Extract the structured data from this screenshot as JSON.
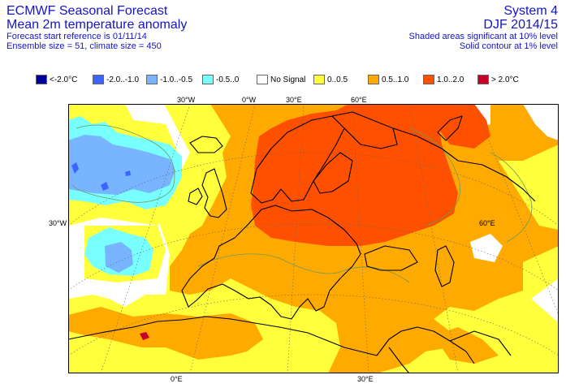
{
  "header": {
    "title_left": "ECMWF Seasonal Forecast",
    "subtitle_left": "Mean 2m temperature anomaly",
    "forecast_start": "Forecast start reference is 01/11/14",
    "ensemble": "Ensemble size = 51, climate size = 450",
    "system": "System 4",
    "season": "DJF 2014/15",
    "shaded_note": "Shaded areas significant at 10% level",
    "contour_note": "Solid contour at 1% level"
  },
  "legend": [
    {
      "label": "<-2.0°C",
      "color": "#00009c"
    },
    {
      "label": "-2.0..-1.0",
      "color": "#3c64ff"
    },
    {
      "label": "-1.0..-0.5",
      "color": "#78b4ff"
    },
    {
      "label": "-0.5..0",
      "color": "#78ffff"
    },
    {
      "label": "No Signal",
      "color": "#ffffff"
    },
    {
      "label": "0..0.5",
      "color": "#ffff3c"
    },
    {
      "label": "0.5..1.0",
      "color": "#ffaa00"
    },
    {
      "label": "1.0..2.0",
      "color": "#ff5000"
    },
    {
      "label": "> 2.0°C",
      "color": "#c80028"
    }
  ],
  "axes": {
    "top": [
      "30°W",
      "0°W",
      "30°E",
      "60°E"
    ],
    "left": "30°W",
    "right": "60°E",
    "bottom": [
      "0°E",
      "30°E"
    ]
  }
}
